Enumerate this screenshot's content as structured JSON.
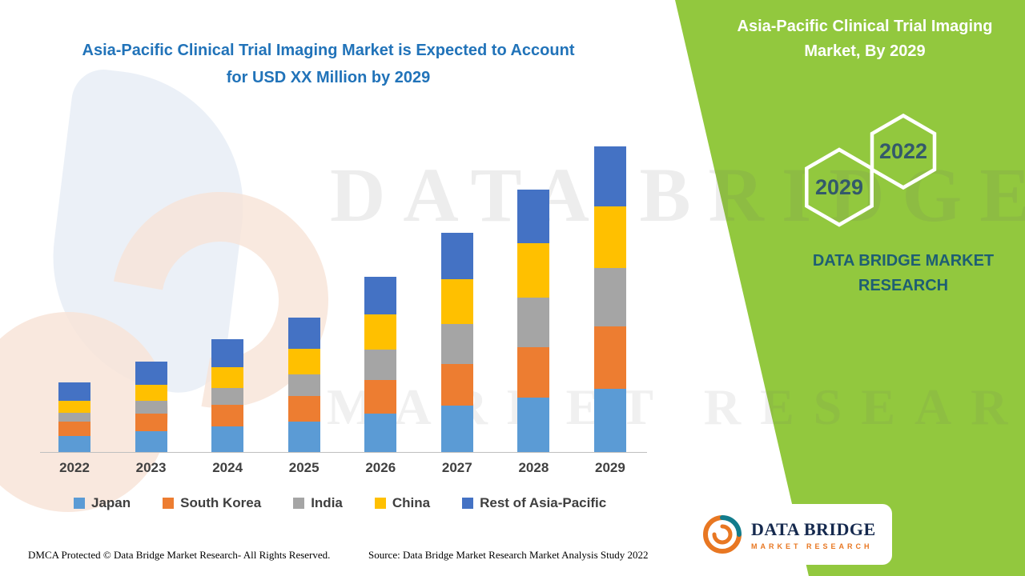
{
  "title": {
    "line1": "Asia-Pacific Clinical Trial Imaging Market is Expected to Account",
    "line2": "for USD XX Million by 2029",
    "color": "#2173B9"
  },
  "side_panel": {
    "panel_color": "#92C83E",
    "title": "Asia-Pacific Clinical Trial Imaging Market, By 2029",
    "hexagons": [
      "2029",
      "2022"
    ],
    "hexagon_text_color": "#33596B",
    "brand": "DATA BRIDGE MARKET RESEARCH",
    "brand_color": "#1E5E73"
  },
  "watermark": {
    "line1": "DATA BRIDGE",
    "line2": "MARKET RESEARCH"
  },
  "footer": {
    "dmca": "DMCA Protected © Data Bridge Market Research- All Rights Reserved.",
    "source": "Source: Data Bridge Market Research Market Analysis Study 2022"
  },
  "logo": {
    "name": "DATA BRIDGE",
    "subtitle": "MARKET RESEARCH",
    "name_color": "#15294E",
    "subtitle_color": "#E87722"
  },
  "chart_data": {
    "type": "bar",
    "stacked": true,
    "title": "Asia-Pacific Clinical Trial Imaging Market is Expected to Account for USD XX Million by 2029",
    "xlabel": "",
    "ylabel": "",
    "categories": [
      "2022",
      "2023",
      "2024",
      "2025",
      "2026",
      "2027",
      "2028",
      "2029"
    ],
    "series": [
      {
        "name": "Japan",
        "color": "#5B9BD5",
        "values": [
          20,
          26,
          32,
          38,
          48,
          58,
          68,
          79
        ]
      },
      {
        "name": "South Korea",
        "color": "#ED7D31",
        "values": [
          18,
          22,
          27,
          32,
          42,
          52,
          63,
          78
        ]
      },
      {
        "name": "India",
        "color": "#A5A5A5",
        "values": [
          11,
          16,
          21,
          27,
          38,
          50,
          62,
          73
        ]
      },
      {
        "name": "China",
        "color": "#FFC000",
        "values": [
          15,
          20,
          26,
          32,
          44,
          56,
          68,
          77
        ]
      },
      {
        "name": "Rest of Asia-Pacific",
        "color": "#4472C4",
        "values": [
          23,
          29,
          35,
          39,
          47,
          58,
          67,
          75
        ]
      }
    ],
    "ylim": [
      0,
      420
    ],
    "legend_position": "bottom",
    "grid": false
  }
}
